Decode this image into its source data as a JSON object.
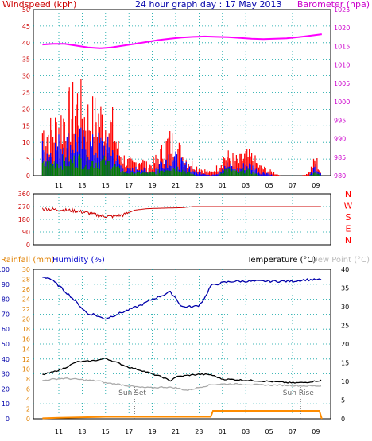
{
  "chart_data": [
    {
      "id": "wind-baro",
      "type": "line",
      "title": "24 hour graph day : 17 May 2013",
      "ylabel_left": "Windspeed (kph)",
      "ylabel_right": "Barometer (hpa)",
      "x_ticks": [
        "11",
        "13",
        "15",
        "17",
        "19",
        "21",
        "23",
        "01",
        "03",
        "05",
        "07",
        "09"
      ],
      "y_left_ticks": [
        0,
        5,
        10,
        15,
        20,
        25,
        30,
        35,
        40,
        45,
        50
      ],
      "y_left_range": [
        0,
        50
      ],
      "y_right_ticks": [
        980,
        985,
        990,
        995,
        1000,
        1005,
        1010,
        1015,
        1020,
        1025
      ],
      "y_right_range": [
        980,
        1025
      ],
      "colors": {
        "gust": "#ff0000",
        "wind": "#0000ff",
        "avg": "#008000",
        "baro": "#ff00ff",
        "windlabel": "#cc0000",
        "barolabel": "#cc00cc",
        "title": "#0000aa"
      },
      "series": [
        {
          "name": "Barometer",
          "color": "#ff00ff",
          "axis": "right",
          "x": [
            9.6,
            10.5,
            11.5,
            12.5,
            13.5,
            14.5,
            15.5,
            16.5,
            17.5,
            18.5,
            19.5,
            20.5,
            21.5,
            22.5,
            23.5,
            24.5,
            25.5,
            26.5,
            27.5,
            28.5,
            29.5,
            30.5,
            31.5,
            32.5,
            33.5
          ],
          "y": [
            1015.5,
            1015.7,
            1015.7,
            1015.2,
            1014.7,
            1014.5,
            1014.7,
            1015.2,
            1015.7,
            1016.2,
            1016.7,
            1017.1,
            1017.4,
            1017.6,
            1017.7,
            1017.6,
            1017.5,
            1017.3,
            1017.1,
            1017.0,
            1017.1,
            1017.2,
            1017.5,
            1017.9,
            1018.3
          ]
        }
      ],
      "wind_envelope": {
        "x": [
          9.6,
          10.2,
          10.8,
          11.4,
          12.0,
          12.6,
          13.2,
          13.8,
          14.4,
          15.0,
          15.6,
          16.2,
          16.8,
          17.4,
          18.0,
          18.6,
          19.2,
          19.8,
          20.4,
          21.0,
          21.6,
          22.2,
          22.8,
          23.4,
          24.0,
          24.6,
          25.2,
          25.8,
          26.4,
          27.0,
          27.6,
          28.2,
          28.8,
          29.4,
          30.0,
          30.6,
          31.2,
          31.8,
          32.4,
          33.0,
          33.5
        ],
        "gust": [
          16,
          15,
          17,
          20,
          22,
          26,
          21,
          20,
          21,
          18,
          17,
          8,
          5,
          4,
          6,
          3,
          5,
          8,
          12,
          11,
          7,
          5,
          3,
          2,
          1,
          3,
          7,
          6,
          5,
          7,
          6,
          3,
          2,
          1,
          0,
          0,
          0,
          0,
          1,
          6,
          0
        ],
        "wind": [
          9,
          8,
          10,
          12,
          11,
          13,
          11,
          10,
          11,
          10,
          9,
          4,
          2,
          2,
          3,
          1,
          2,
          5,
          7,
          6,
          4,
          3,
          1,
          1,
          0,
          1,
          4,
          3,
          2,
          4,
          3,
          1,
          1,
          0,
          0,
          0,
          0,
          0,
          0,
          3,
          0
        ],
        "avg": [
          4,
          4,
          5,
          5,
          5,
          6,
          5,
          5,
          5,
          5,
          4,
          2,
          1,
          1,
          1,
          1,
          1,
          2,
          3,
          3,
          2,
          1,
          0,
          0,
          0,
          0,
          2,
          2,
          1,
          2,
          1,
          0,
          0,
          0,
          0,
          0,
          0,
          0,
          0,
          1,
          0
        ]
      }
    },
    {
      "id": "direction",
      "type": "line",
      "y_ticks": [
        0,
        90,
        180,
        270,
        360
      ],
      "y_range": [
        0,
        360
      ],
      "compass_labels": [
        "N",
        "W",
        "S",
        "E",
        "N"
      ],
      "colors": {
        "dir": "#cc0000",
        "tick": "#cc0000",
        "compass": "#ff0000"
      },
      "series": [
        {
          "name": "Wind direction",
          "color": "#cc0000",
          "x": [
            9.6,
            10.5,
            11.5,
            12.5,
            13.5,
            14.5,
            15.5,
            16.5,
            17.5,
            18.5,
            19.5,
            20.5,
            21.5,
            22.5,
            23.5,
            24.5,
            25.5,
            26.5,
            27.5,
            28.5,
            29.5,
            30.5,
            31.5,
            32.5,
            33.5
          ],
          "y": [
            255,
            250,
            245,
            240,
            225,
            205,
            200,
            210,
            245,
            255,
            258,
            260,
            262,
            270,
            270,
            270,
            270,
            270,
            270,
            270,
            270,
            270,
            270,
            270,
            270
          ]
        }
      ]
    },
    {
      "id": "temp-hum-rain",
      "type": "line",
      "label_rain": "Rainfall (mm)",
      "label_humidity": "Humidity (%)",
      "label_temp": "Temperature (°C)",
      "label_dew": "Dew Point (°C)",
      "sunset_label": "Sun Set",
      "sunrise_label": "Sun Rise",
      "sunset_x": 17.5,
      "sunrise_x": 31.7,
      "hum_ticks": [
        0,
        10,
        20,
        30,
        40,
        50,
        60,
        70,
        80,
        90,
        100
      ],
      "hum_range": [
        0,
        100
      ],
      "rain_ticks": [
        0,
        2,
        4,
        6,
        8,
        10,
        12,
        14,
        16,
        18,
        20,
        22,
        24,
        26,
        28,
        30
      ],
      "rain_range": [
        0,
        30
      ],
      "temp_ticks": [
        0,
        5,
        10,
        15,
        20,
        25,
        30,
        35,
        40
      ],
      "temp_range": [
        0,
        40
      ],
      "x_ticks": [
        "11",
        "13",
        "15",
        "17",
        "19",
        "21",
        "23",
        "01",
        "03",
        "05",
        "07",
        "09"
      ],
      "colors": {
        "hum": "#0000aa",
        "temp": "#000000",
        "dew": "#aaaaaa",
        "rain": "#ff8c00",
        "rainlabel": "#e08000",
        "humlabel": "#0000cc",
        "dewlabel": "#bbbbbb",
        "humtick": "#0000aa",
        "raintick": "#e08000"
      },
      "series": [
        {
          "name": "Humidity",
          "color": "#0000aa",
          "axis": "hum",
          "x": [
            9.6,
            10.2,
            11.0,
            12.0,
            13.0,
            13.5,
            14.0,
            14.5,
            15.0,
            16.0,
            17.0,
            18.0,
            19.0,
            20.0,
            20.5,
            21.0,
            21.5,
            22.5,
            23.0,
            23.5,
            24.0,
            25.0,
            26.0,
            28.0,
            30.0,
            31.0,
            32.0,
            33.5
          ],
          "y": [
            95,
            94,
            89,
            82,
            74,
            70,
            70,
            68,
            67,
            70,
            73,
            76,
            80,
            83,
            85,
            81,
            75,
            75,
            76,
            81,
            89,
            91,
            92,
            92,
            92,
            92,
            93,
            93
          ]
        },
        {
          "name": "Temperature",
          "color": "#000000",
          "axis": "temp",
          "x": [
            9.6,
            10.5,
            11.5,
            12.5,
            13.5,
            14.5,
            15.0,
            16.0,
            17.0,
            18.0,
            19.0,
            20.0,
            20.5,
            21.0,
            22.0,
            23.0,
            24.0,
            25.0,
            26.0,
            27.0,
            28.0,
            29.0,
            30.0,
            31.0,
            32.0,
            33.0,
            33.5
          ],
          "y": [
            11.8,
            12.5,
            13.6,
            15.2,
            15.4,
            15.8,
            16.2,
            15.0,
            13.8,
            13.0,
            12.0,
            11.0,
            10.1,
            11.2,
            11.6,
            11.9,
            11.8,
            10.6,
            10.5,
            10.3,
            10.2,
            10.0,
            9.8,
            9.6,
            9.7,
            10.1,
            10.3
          ]
        },
        {
          "name": "Dew Point",
          "color": "#aaaaaa",
          "axis": "temp",
          "x": [
            9.6,
            10.5,
            11.5,
            12.5,
            13.5,
            14.5,
            15.0,
            16.0,
            17.0,
            18.0,
            19.0,
            20.0,
            21.0,
            22.0,
            23.0,
            24.0,
            25.0,
            26.0,
            27.0,
            28.0,
            29.0,
            30.0,
            31.0,
            32.0,
            33.0,
            33.5
          ],
          "y": [
            10.2,
            10.6,
            10.8,
            10.6,
            10.3,
            10.1,
            9.6,
            9.3,
            8.8,
            8.4,
            8.3,
            8.5,
            8.3,
            7.6,
            8.4,
            9.1,
            9.3,
            9.3,
            9.2,
            9.1,
            9.0,
            9.0,
            8.9,
            8.8,
            8.8,
            8.8
          ]
        },
        {
          "name": "Rainfall",
          "color": "#ff8c00",
          "axis": "rain",
          "x": [
            9.6,
            11.0,
            15.0,
            20.0,
            23.5,
            24.0,
            24.2,
            26.0,
            28.0,
            30.0,
            32.0,
            33.3,
            33.5
          ],
          "y": [
            0.1,
            0.2,
            0.4,
            0.4,
            0.4,
            0.4,
            1.6,
            1.6,
            1.6,
            1.6,
            1.6,
            1.6,
            0
          ]
        }
      ]
    }
  ]
}
